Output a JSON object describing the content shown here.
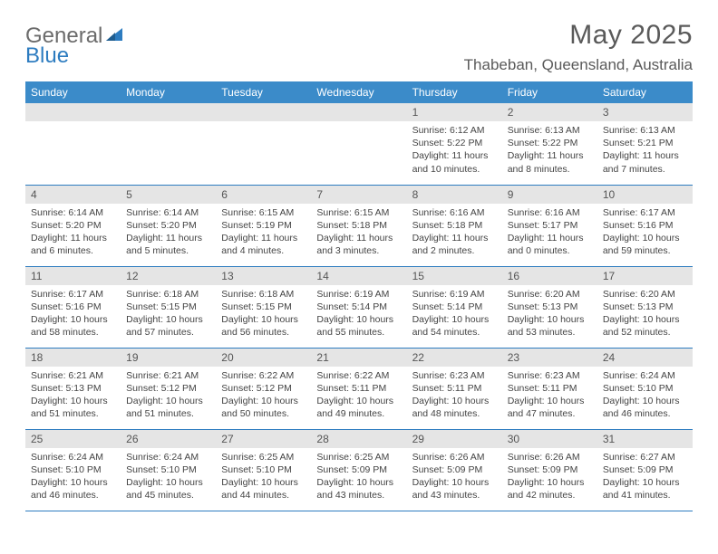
{
  "logo": {
    "word1": "General",
    "word2": "Blue"
  },
  "title": "May 2025",
  "location": "Thabeban, Queensland, Australia",
  "header_bg": "#3b8bc9",
  "header_text": "#ffffff",
  "daynum_bg": "#e5e5e5",
  "border_color": "#2d7cc0",
  "text_color": "#444444",
  "font_family": "Arial, Helvetica, sans-serif",
  "month_title_fontsize": 30,
  "location_fontsize": 17,
  "dayheader_fontsize": 12,
  "daycontent_fontsize": 10.5,
  "columns": [
    "Sunday",
    "Monday",
    "Tuesday",
    "Wednesday",
    "Thursday",
    "Friday",
    "Saturday"
  ],
  "weeks": [
    [
      null,
      null,
      null,
      null,
      {
        "n": "1",
        "sunrise": "6:12 AM",
        "sunset": "5:22 PM",
        "daylight": "11 hours and 10 minutes."
      },
      {
        "n": "2",
        "sunrise": "6:13 AM",
        "sunset": "5:22 PM",
        "daylight": "11 hours and 8 minutes."
      },
      {
        "n": "3",
        "sunrise": "6:13 AM",
        "sunset": "5:21 PM",
        "daylight": "11 hours and 7 minutes."
      }
    ],
    [
      {
        "n": "4",
        "sunrise": "6:14 AM",
        "sunset": "5:20 PM",
        "daylight": "11 hours and 6 minutes."
      },
      {
        "n": "5",
        "sunrise": "6:14 AM",
        "sunset": "5:20 PM",
        "daylight": "11 hours and 5 minutes."
      },
      {
        "n": "6",
        "sunrise": "6:15 AM",
        "sunset": "5:19 PM",
        "daylight": "11 hours and 4 minutes."
      },
      {
        "n": "7",
        "sunrise": "6:15 AM",
        "sunset": "5:18 PM",
        "daylight": "11 hours and 3 minutes."
      },
      {
        "n": "8",
        "sunrise": "6:16 AM",
        "sunset": "5:18 PM",
        "daylight": "11 hours and 2 minutes."
      },
      {
        "n": "9",
        "sunrise": "6:16 AM",
        "sunset": "5:17 PM",
        "daylight": "11 hours and 0 minutes."
      },
      {
        "n": "10",
        "sunrise": "6:17 AM",
        "sunset": "5:16 PM",
        "daylight": "10 hours and 59 minutes."
      }
    ],
    [
      {
        "n": "11",
        "sunrise": "6:17 AM",
        "sunset": "5:16 PM",
        "daylight": "10 hours and 58 minutes."
      },
      {
        "n": "12",
        "sunrise": "6:18 AM",
        "sunset": "5:15 PM",
        "daylight": "10 hours and 57 minutes."
      },
      {
        "n": "13",
        "sunrise": "6:18 AM",
        "sunset": "5:15 PM",
        "daylight": "10 hours and 56 minutes."
      },
      {
        "n": "14",
        "sunrise": "6:19 AM",
        "sunset": "5:14 PM",
        "daylight": "10 hours and 55 minutes."
      },
      {
        "n": "15",
        "sunrise": "6:19 AM",
        "sunset": "5:14 PM",
        "daylight": "10 hours and 54 minutes."
      },
      {
        "n": "16",
        "sunrise": "6:20 AM",
        "sunset": "5:13 PM",
        "daylight": "10 hours and 53 minutes."
      },
      {
        "n": "17",
        "sunrise": "6:20 AM",
        "sunset": "5:13 PM",
        "daylight": "10 hours and 52 minutes."
      }
    ],
    [
      {
        "n": "18",
        "sunrise": "6:21 AM",
        "sunset": "5:13 PM",
        "daylight": "10 hours and 51 minutes."
      },
      {
        "n": "19",
        "sunrise": "6:21 AM",
        "sunset": "5:12 PM",
        "daylight": "10 hours and 51 minutes."
      },
      {
        "n": "20",
        "sunrise": "6:22 AM",
        "sunset": "5:12 PM",
        "daylight": "10 hours and 50 minutes."
      },
      {
        "n": "21",
        "sunrise": "6:22 AM",
        "sunset": "5:11 PM",
        "daylight": "10 hours and 49 minutes."
      },
      {
        "n": "22",
        "sunrise": "6:23 AM",
        "sunset": "5:11 PM",
        "daylight": "10 hours and 48 minutes."
      },
      {
        "n": "23",
        "sunrise": "6:23 AM",
        "sunset": "5:11 PM",
        "daylight": "10 hours and 47 minutes."
      },
      {
        "n": "24",
        "sunrise": "6:24 AM",
        "sunset": "5:10 PM",
        "daylight": "10 hours and 46 minutes."
      }
    ],
    [
      {
        "n": "25",
        "sunrise": "6:24 AM",
        "sunset": "5:10 PM",
        "daylight": "10 hours and 46 minutes."
      },
      {
        "n": "26",
        "sunrise": "6:24 AM",
        "sunset": "5:10 PM",
        "daylight": "10 hours and 45 minutes."
      },
      {
        "n": "27",
        "sunrise": "6:25 AM",
        "sunset": "5:10 PM",
        "daylight": "10 hours and 44 minutes."
      },
      {
        "n": "28",
        "sunrise": "6:25 AM",
        "sunset": "5:09 PM",
        "daylight": "10 hours and 43 minutes."
      },
      {
        "n": "29",
        "sunrise": "6:26 AM",
        "sunset": "5:09 PM",
        "daylight": "10 hours and 43 minutes."
      },
      {
        "n": "30",
        "sunrise": "6:26 AM",
        "sunset": "5:09 PM",
        "daylight": "10 hours and 42 minutes."
      },
      {
        "n": "31",
        "sunrise": "6:27 AM",
        "sunset": "5:09 PM",
        "daylight": "10 hours and 41 minutes."
      }
    ]
  ],
  "labels": {
    "sunrise": "Sunrise:",
    "sunset": "Sunset:",
    "daylight": "Daylight:"
  }
}
